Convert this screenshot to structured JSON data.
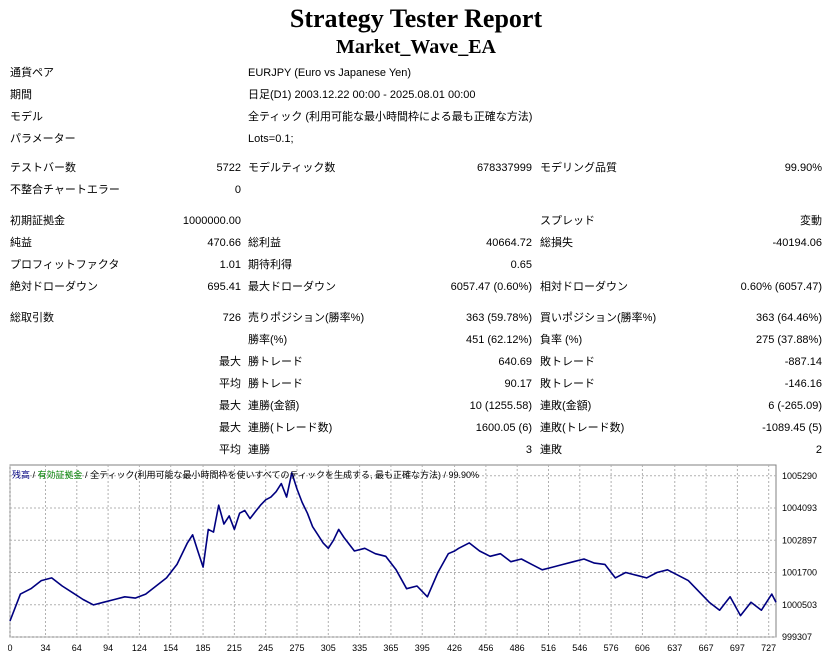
{
  "header": {
    "title": "Strategy Tester Report",
    "subtitle": "Market_Wave_EA"
  },
  "info": [
    {
      "label": "通貨ペア",
      "value": "EURJPY (Euro vs Japanese Yen)"
    },
    {
      "label": "期間",
      "value": "日足(D1) 2003.12.22 00:00 - 2025.08.01 00:00"
    },
    {
      "label": "モデル",
      "value": "全ティック (利用可能な最小時間枠による最も正確な方法)"
    },
    {
      "label": "パラメーター",
      "value": "Lots=0.1;"
    }
  ],
  "stats": {
    "bars_label": "テストバー数",
    "bars_value": "5722",
    "ticks_label": "モデルティック数",
    "ticks_value": "678337999",
    "quality_label": "モデリング品質",
    "quality_value": "99.90%",
    "mismatch_label": "不整合チャートエラー",
    "mismatch_value": "0",
    "deposit_label": "初期証拠金",
    "deposit_value": "1000000.00",
    "spread_label": "スプレッド",
    "spread_value": "変動",
    "net_label": "純益",
    "net_value": "470.66",
    "gross_profit_label": "総利益",
    "gross_profit_value": "40664.72",
    "gross_loss_label": "総損失",
    "gross_loss_value": "-40194.06",
    "pf_label": "プロフィットファクタ",
    "pf_value": "1.01",
    "expected_label": "期待利得",
    "expected_value": "0.65",
    "abs_dd_label": "絶対ドローダウン",
    "abs_dd_value": "695.41",
    "max_dd_label": "最大ドローダウン",
    "max_dd_value": "6057.47 (0.60%)",
    "rel_dd_label": "相対ドローダウン",
    "rel_dd_value": "0.60% (6057.47)",
    "total_label": "総取引数",
    "total_value": "726",
    "short_label": "売りポジション(勝率%)",
    "short_value": "363 (59.78%)",
    "long_label": "買いポジション(勝率%)",
    "long_value": "363 (64.46%)",
    "win_rate_label": "勝率(%)",
    "win_rate_value": "451 (62.12%)",
    "loss_rate_label": "負率 (%)",
    "loss_rate_value": "275 (37.88%)",
    "max1_label": "最大",
    "largest_win_label": "勝トレード",
    "largest_win_value": "640.69",
    "largest_loss_label": "敗トレード",
    "largest_loss_value": "-887.14",
    "avg1_label": "平均",
    "avg_win_label": "勝トレード",
    "avg_win_value": "90.17",
    "avg_loss_label": "敗トレード",
    "avg_loss_value": "-146.16",
    "max2_label": "最大",
    "max_consec_wins_label": "連勝(金額)",
    "max_consec_wins_value": "10 (1255.58)",
    "max_consec_losses_label": "連敗(金額)",
    "max_consec_losses_value": "6 (-265.09)",
    "max3_label": "最大",
    "max_consec_profit_label": "連勝(トレード数)",
    "max_consec_profit_value": "1600.05 (6)",
    "max_consec_loss_label": "連敗(トレード数)",
    "max_consec_loss_value": "-1089.45 (5)",
    "avg2_label": "平均",
    "avg_consec_wins_label": "連勝",
    "avg_consec_wins_value": "3",
    "avg_consec_losses_label": "連敗",
    "avg_consec_losses_value": "2"
  },
  "legend": {
    "balance": "残高",
    "sep1": " / ",
    "equity": "有効証拠金",
    "sep2": " / ",
    "model": "全ティック(利用可能な最小時間枠を使いすべてのティックを生成する, 最も正確な方法)",
    "sep3": " / ",
    "quality": "99.90%"
  },
  "chart_data": {
    "type": "line",
    "title": "",
    "xlabel": "",
    "ylabel": "",
    "x_ticks": [
      0,
      34,
      64,
      94,
      124,
      154,
      185,
      215,
      245,
      275,
      305,
      335,
      365,
      395,
      426,
      456,
      486,
      516,
      546,
      576,
      606,
      637,
      667,
      697,
      727
    ],
    "y_ticks": [
      999307,
      1000503,
      1001700,
      1002897,
      1004093,
      1005290
    ],
    "xlim": [
      0,
      734
    ],
    "ylim": [
      999307,
      1005690
    ],
    "colors": {
      "balance": "#000080",
      "grid": "#b0b0b0"
    },
    "series": [
      {
        "name": "残高",
        "x": [
          0,
          10,
          20,
          30,
          40,
          50,
          60,
          70,
          80,
          90,
          100,
          110,
          120,
          130,
          140,
          150,
          160,
          170,
          175,
          180,
          185,
          190,
          195,
          200,
          205,
          210,
          215,
          220,
          225,
          230,
          235,
          240,
          245,
          250,
          255,
          260,
          265,
          270,
          275,
          280,
          285,
          290,
          295,
          300,
          305,
          310,
          315,
          320,
          330,
          340,
          350,
          360,
          370,
          380,
          390,
          400,
          410,
          420,
          426,
          430,
          440,
          450,
          460,
          470,
          480,
          490,
          500,
          510,
          520,
          530,
          540,
          550,
          560,
          570,
          580,
          590,
          600,
          610,
          620,
          630,
          640,
          650,
          660,
          670,
          680,
          690,
          700,
          710,
          720,
          730,
          734
        ],
        "values": [
          999900,
          1000900,
          1001100,
          1001400,
          1001500,
          1001200,
          1000950,
          1000700,
          1000500,
          1000600,
          1000700,
          1000800,
          1000750,
          1000900,
          1001200,
          1001500,
          1002000,
          1002800,
          1003100,
          1002500,
          1001900,
          1003300,
          1003200,
          1004200,
          1003500,
          1003800,
          1003300,
          1003900,
          1004000,
          1003700,
          1003950,
          1004200,
          1004400,
          1004500,
          1004700,
          1005000,
          1004500,
          1005400,
          1004800,
          1004300,
          1003900,
          1003400,
          1003100,
          1002800,
          1002600,
          1002900,
          1003300,
          1003000,
          1002500,
          1002600,
          1002400,
          1002300,
          1001800,
          1001100,
          1001200,
          1000800,
          1001700,
          1002400,
          1002500,
          1002600,
          1002800,
          1002500,
          1002300,
          1002400,
          1002100,
          1002200,
          1002000,
          1001800,
          1001900,
          1002000,
          1002100,
          1002200,
          1002050,
          1002000,
          1001500,
          1001700,
          1001600,
          1001500,
          1001700,
          1001800,
          1001600,
          1001400,
          1001000,
          1000600,
          1000300,
          1000800,
          1000100,
          1000600,
          1000300,
          1000900,
          1000600
        ]
      }
    ]
  }
}
